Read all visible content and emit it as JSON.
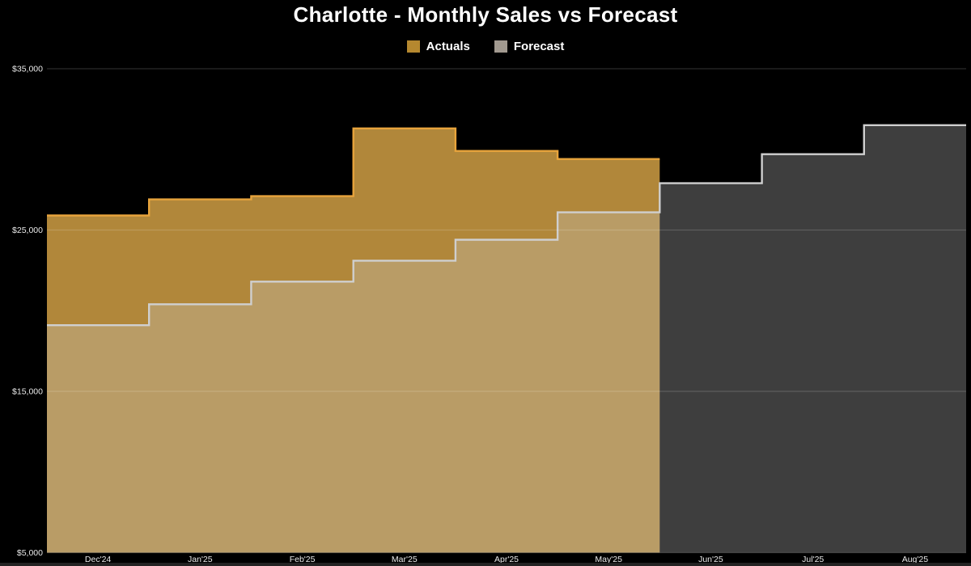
{
  "title": "Charlotte - Monthly Sales vs Forecast",
  "legend": {
    "items": [
      {
        "label": "Actuals",
        "color": "#b5882f"
      },
      {
        "label": "Forecast",
        "color": "#a29a90"
      }
    ]
  },
  "colors": {
    "background": "#000000",
    "bottom_border": "#232323",
    "title_text": "#ffffff",
    "tick_text": "#e9e9e9",
    "gridline": "rgba(255,255,255,0.16)"
  },
  "chart_data": {
    "type": "area",
    "subtype": "step",
    "title": "Charlotte - Monthly Sales vs Forecast",
    "xlabel": "",
    "ylabel": "",
    "categories": [
      "Dec'24",
      "Jan'25",
      "Feb'25",
      "Mar'25",
      "Apr'25",
      "May'25",
      "Jun'25",
      "Jul'25",
      "Aug'25"
    ],
    "series": [
      {
        "name": "Actuals",
        "values": [
          25900,
          26900,
          27100,
          31300,
          29900,
          29400,
          null,
          null,
          null
        ],
        "fill": "#b1873a",
        "stroke": "#e8a43c"
      },
      {
        "name": "Forecast",
        "values": [
          19100,
          20400,
          21800,
          23100,
          24400,
          26100,
          27900,
          29700,
          31500
        ],
        "fill": "rgba(205,205,205,0.30)",
        "stroke": "#cfcfcf"
      }
    ],
    "ylim": [
      5000,
      35000
    ],
    "yticks": [
      {
        "value": 35000,
        "label": "$35,000"
      },
      {
        "value": 25000,
        "label": "$25,000"
      },
      {
        "value": 15000,
        "label": "$15,000"
      },
      {
        "value": 5000,
        "label": "$5,000"
      }
    ],
    "grid": "horizontal",
    "legend_position": "top-center",
    "tick_color": "#e9e9e9",
    "gridline_color": "rgba(255,255,255,0.16)"
  }
}
